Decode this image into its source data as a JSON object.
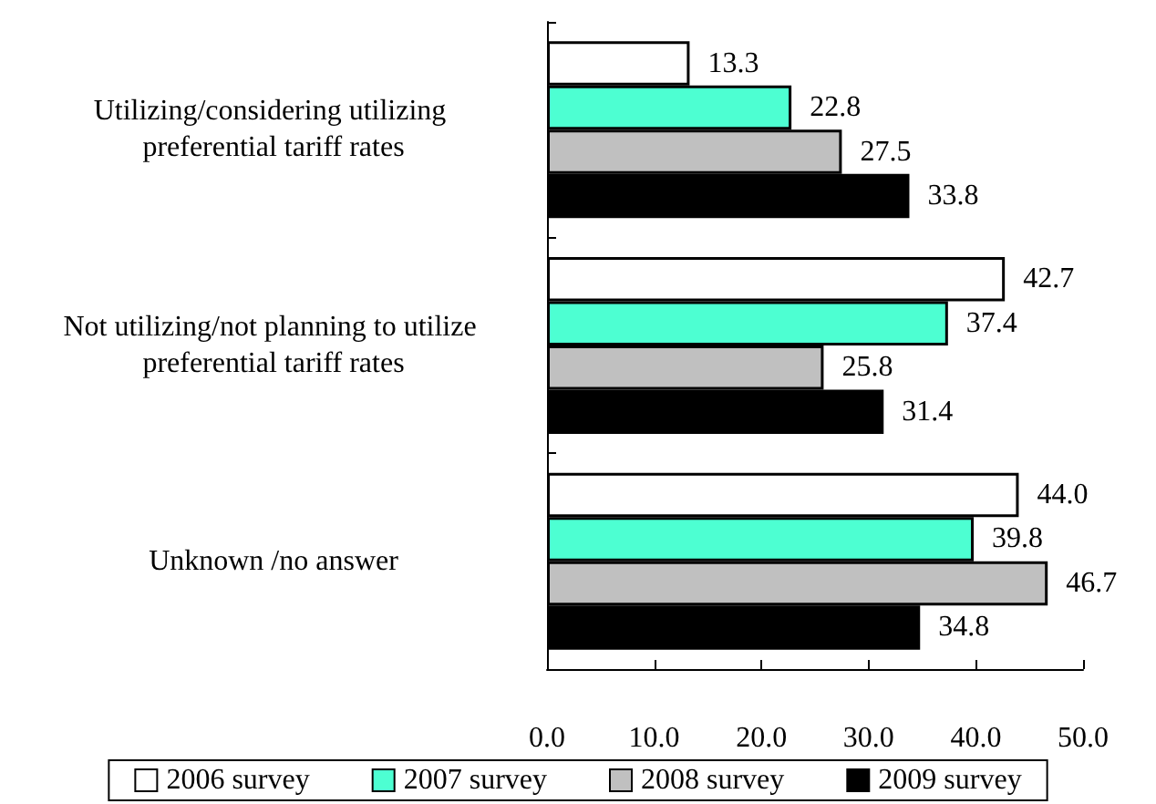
{
  "chart_data": {
    "type": "bar",
    "orientation": "horizontal",
    "categories": [
      "Utilizing/considering utilizing preferential tariff rates",
      "Not utilizing/not planning to utilize preferential tariff rates",
      "Unknown /no answer"
    ],
    "series": [
      {
        "name": "2006 survey",
        "color": "#ffffff",
        "values": [
          13.3,
          42.7,
          44.0
        ],
        "value_labels": [
          "13.3",
          "42.7",
          "44.0"
        ]
      },
      {
        "name": "2007 survey",
        "color": "#4dffd2",
        "values": [
          22.8,
          37.4,
          39.8
        ],
        "value_labels": [
          "22.8",
          "37.4",
          "39.8"
        ]
      },
      {
        "name": "2008 survey",
        "color": "#c0c0c0",
        "values": [
          27.5,
          25.8,
          46.7
        ],
        "value_labels": [
          "27.5",
          "25.8",
          "46.7"
        ]
      },
      {
        "name": "2009 survey",
        "color": "#000000",
        "values": [
          33.8,
          31.4,
          34.8
        ],
        "value_labels": [
          "33.8",
          "31.4",
          "34.8"
        ]
      }
    ],
    "xlim": [
      0,
      50
    ],
    "xticks": [
      {
        "value": 0,
        "label": "0.0"
      },
      {
        "value": 10,
        "label": "10.0"
      },
      {
        "value": 20,
        "label": "20.0"
      },
      {
        "value": 30,
        "label": "30.0"
      },
      {
        "value": 40,
        "label": "40.0"
      },
      {
        "value": 50,
        "label": "50.0"
      }
    ],
    "legend": "bottom",
    "grid": false
  }
}
